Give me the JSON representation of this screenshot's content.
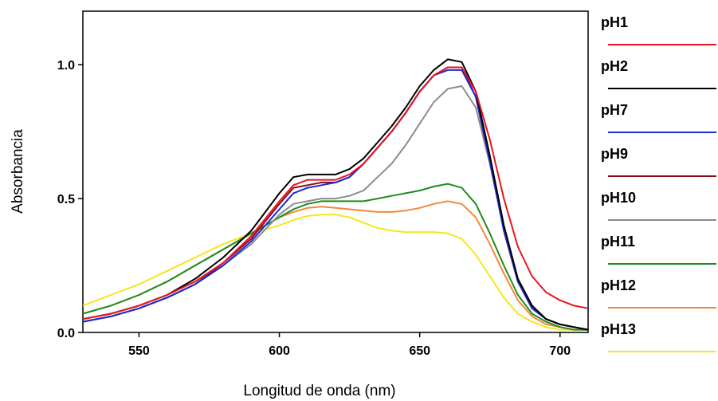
{
  "chart_data": {
    "type": "line",
    "xlabel": "Longitud de onda (nm)",
    "ylabel": "Absorbancia",
    "xlim": [
      530,
      710
    ],
    "ylim": [
      0.0,
      1.2
    ],
    "x_ticks": [
      550,
      600,
      650,
      700
    ],
    "y_ticks": [
      0.0,
      0.5,
      1.0
    ],
    "x_tick_labels": [
      "550",
      "600",
      "650",
      "700"
    ],
    "y_tick_labels": [
      "0.0",
      "0.5",
      "1.0"
    ],
    "grid": false,
    "legend_position": "right",
    "x": [
      530,
      540,
      550,
      560,
      570,
      580,
      590,
      600,
      605,
      610,
      615,
      620,
      625,
      630,
      635,
      640,
      645,
      650,
      655,
      660,
      665,
      670,
      675,
      680,
      685,
      690,
      695,
      700,
      705,
      710
    ],
    "series": [
      {
        "name": "pH1",
        "color": "#e8141e",
        "values": [
          0.05,
          0.07,
          0.1,
          0.14,
          0.19,
          0.26,
          0.36,
          0.49,
          0.55,
          0.57,
          0.57,
          0.57,
          0.59,
          0.63,
          0.69,
          0.75,
          0.82,
          0.9,
          0.96,
          0.99,
          0.99,
          0.9,
          0.72,
          0.5,
          0.32,
          0.21,
          0.15,
          0.12,
          0.1,
          0.09
        ]
      },
      {
        "name": "pH2",
        "color": "#000000",
        "values": [
          0.05,
          0.07,
          0.1,
          0.14,
          0.2,
          0.28,
          0.38,
          0.52,
          0.58,
          0.59,
          0.59,
          0.59,
          0.61,
          0.65,
          0.71,
          0.77,
          0.84,
          0.92,
          0.98,
          1.02,
          1.01,
          0.9,
          0.66,
          0.4,
          0.2,
          0.1,
          0.05,
          0.03,
          0.02,
          0.01
        ]
      },
      {
        "name": "pH7",
        "color": "#1a2bd4",
        "values": [
          0.04,
          0.06,
          0.09,
          0.13,
          0.18,
          0.25,
          0.34,
          0.46,
          0.52,
          0.54,
          0.55,
          0.56,
          0.58,
          0.63,
          0.69,
          0.75,
          0.82,
          0.9,
          0.96,
          0.98,
          0.98,
          0.88,
          0.64,
          0.38,
          0.19,
          0.09,
          0.05,
          0.03,
          0.02,
          0.01
        ]
      },
      {
        "name": "pH9",
        "color": "#8b0a1e",
        "values": [
          0.04,
          0.06,
          0.09,
          0.13,
          0.18,
          0.26,
          0.35,
          0.48,
          0.54,
          0.55,
          0.56,
          0.56,
          0.58,
          0.63,
          0.69,
          0.75,
          0.82,
          0.9,
          0.96,
          0.99,
          0.99,
          0.88,
          0.64,
          0.38,
          0.19,
          0.09,
          0.05,
          0.03,
          0.02,
          0.01
        ]
      },
      {
        "name": "pH10",
        "color": "#8c8c8c",
        "values": [
          0.04,
          0.06,
          0.09,
          0.13,
          0.18,
          0.25,
          0.33,
          0.44,
          0.48,
          0.49,
          0.5,
          0.5,
          0.51,
          0.53,
          0.58,
          0.63,
          0.7,
          0.78,
          0.86,
          0.91,
          0.92,
          0.84,
          0.63,
          0.39,
          0.2,
          0.1,
          0.05,
          0.03,
          0.02,
          0.01
        ]
      },
      {
        "name": "pH11",
        "color": "#1e8c1e",
        "values": [
          0.07,
          0.1,
          0.14,
          0.19,
          0.25,
          0.31,
          0.37,
          0.43,
          0.46,
          0.48,
          0.49,
          0.49,
          0.49,
          0.49,
          0.5,
          0.51,
          0.52,
          0.53,
          0.545,
          0.555,
          0.54,
          0.48,
          0.37,
          0.25,
          0.14,
          0.07,
          0.04,
          0.02,
          0.01,
          0.01
        ]
      },
      {
        "name": "pH12",
        "color": "#f5883a",
        "values": [
          0.07,
          0.1,
          0.14,
          0.19,
          0.25,
          0.31,
          0.37,
          0.43,
          0.45,
          0.465,
          0.47,
          0.465,
          0.46,
          0.455,
          0.45,
          0.45,
          0.455,
          0.465,
          0.48,
          0.49,
          0.48,
          0.43,
          0.33,
          0.22,
          0.12,
          0.06,
          0.03,
          0.02,
          0.01,
          0.01
        ]
      },
      {
        "name": "pH13",
        "color": "#f5e61a",
        "values": [
          0.1,
          0.14,
          0.18,
          0.23,
          0.28,
          0.33,
          0.37,
          0.4,
          0.42,
          0.435,
          0.44,
          0.44,
          0.43,
          0.41,
          0.39,
          0.38,
          0.375,
          0.375,
          0.375,
          0.37,
          0.35,
          0.29,
          0.21,
          0.13,
          0.07,
          0.04,
          0.02,
          0.01,
          0.01,
          0.01
        ]
      }
    ]
  }
}
